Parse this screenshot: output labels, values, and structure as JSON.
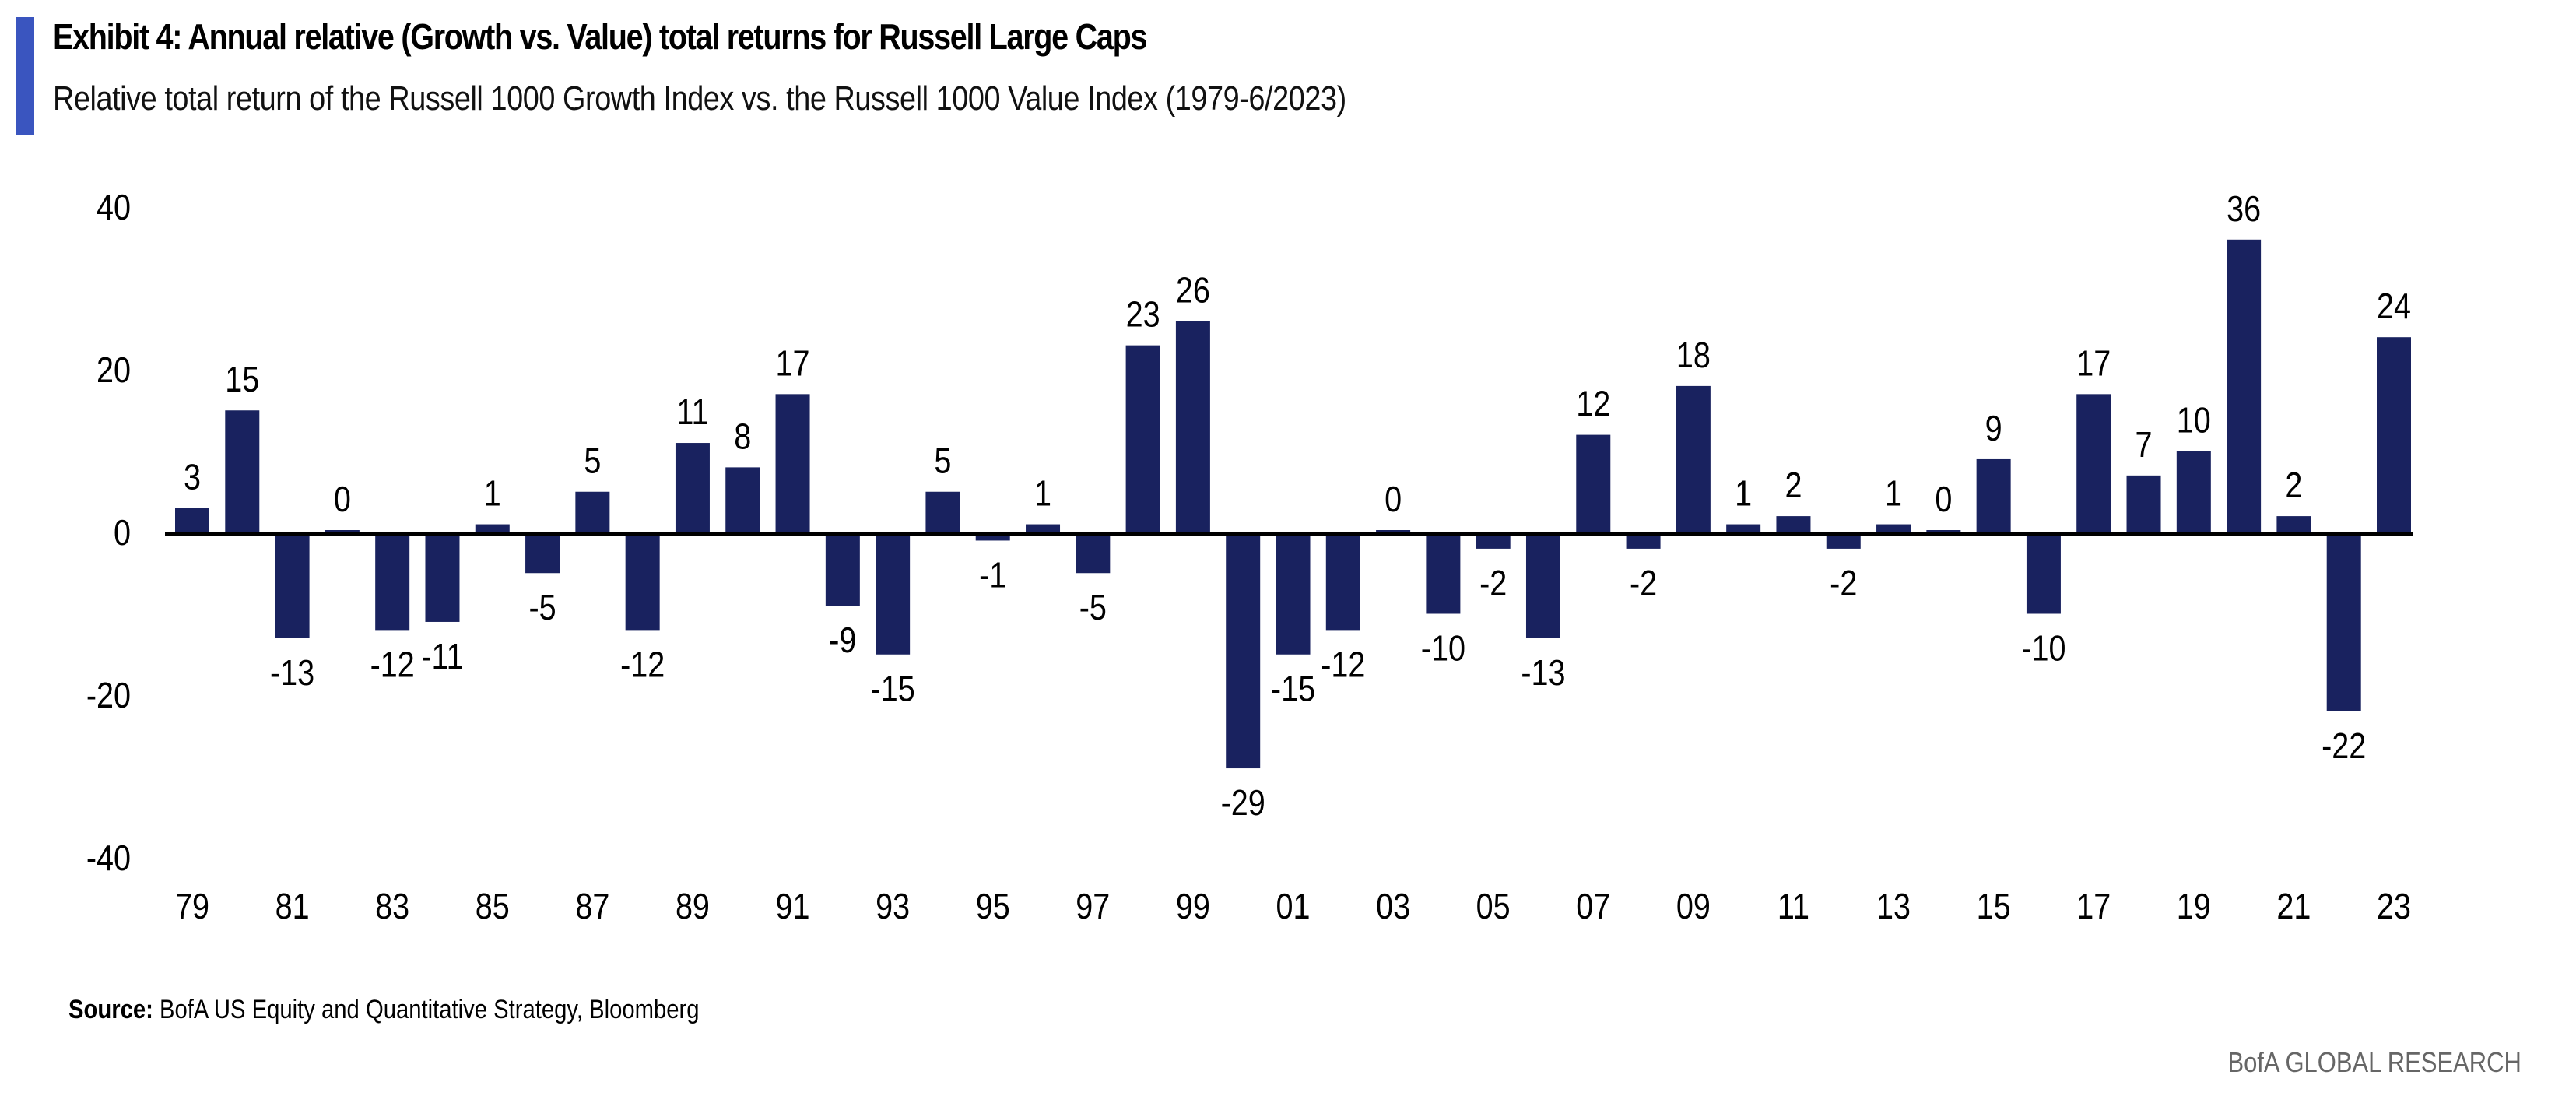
{
  "header": {
    "title": "Exhibit 4: Annual relative (Growth vs. Value) total returns for Russell Large Caps",
    "subtitle": "Relative total return of the Russell 1000 Growth Index vs. the Russell 1000 Value Index (1979-6/2023)",
    "accent_color": "#3a55bf"
  },
  "footer": {
    "source_label": "Source:",
    "source_text": "BofA US Equity and Quantitative Strategy, Bloomberg",
    "brand": "BofA GLOBAL RESEARCH"
  },
  "chart_data": {
    "type": "bar",
    "title": "Exhibit 4: Annual relative (Growth vs. Value) total returns for Russell Large Caps",
    "subtitle": "Relative total return of the Russell 1000 Growth Index vs. the Russell 1000 Value Index (1979-6/2023)",
    "xlabel": "",
    "ylabel": "",
    "ylim": [
      -40,
      40
    ],
    "yticks": [
      40,
      20,
      0,
      -20,
      -40
    ],
    "grid": false,
    "legend": "none",
    "bar_color": "#19225f",
    "categories": [
      "79",
      "80",
      "81",
      "82",
      "83",
      "84",
      "85",
      "86",
      "87",
      "88",
      "89",
      "90",
      "91",
      "92",
      "93",
      "94",
      "95",
      "96",
      "97",
      "98",
      "99",
      "00",
      "01",
      "02",
      "03",
      "04",
      "05",
      "06",
      "07",
      "08",
      "09",
      "10",
      "11",
      "12",
      "13",
      "14",
      "15",
      "16",
      "17",
      "18",
      "19",
      "20",
      "21",
      "22",
      "23"
    ],
    "xtick_labels": [
      "79",
      "81",
      "83",
      "85",
      "87",
      "89",
      "91",
      "93",
      "95",
      "97",
      "99",
      "01",
      "03",
      "05",
      "07",
      "09",
      "11",
      "13",
      "15",
      "17",
      "19",
      "21",
      "23"
    ],
    "values": [
      3,
      15,
      -13,
      0,
      -12,
      -11,
      1,
      -5,
      5,
      -12,
      11,
      8,
      17,
      -9,
      -15,
      5,
      -1,
      1,
      -5,
      23,
      26,
      -29,
      -15,
      -12,
      0,
      -10,
      -2,
      -13,
      12,
      -2,
      18,
      1,
      2,
      -2,
      1,
      0,
      9,
      -10,
      17,
      7,
      10,
      36,
      2,
      -22,
      24
    ],
    "data_labels": [
      "3",
      "15",
      "-13",
      "0",
      "-12",
      "-11",
      "1",
      "-5",
      "5",
      "-12",
      "11",
      "8",
      "17",
      "-9",
      "-15",
      "5",
      "-1",
      "1",
      "-5",
      "23",
      "26",
      "-29",
      "-15",
      "-12",
      "0",
      "-10",
      "-2",
      "-13",
      "12",
      "-2",
      "18",
      "1",
      "2",
      "-2",
      "1",
      "0",
      "9",
      "-10",
      "17",
      "7",
      "10",
      "36",
      "2",
      "-22",
      "24"
    ]
  }
}
